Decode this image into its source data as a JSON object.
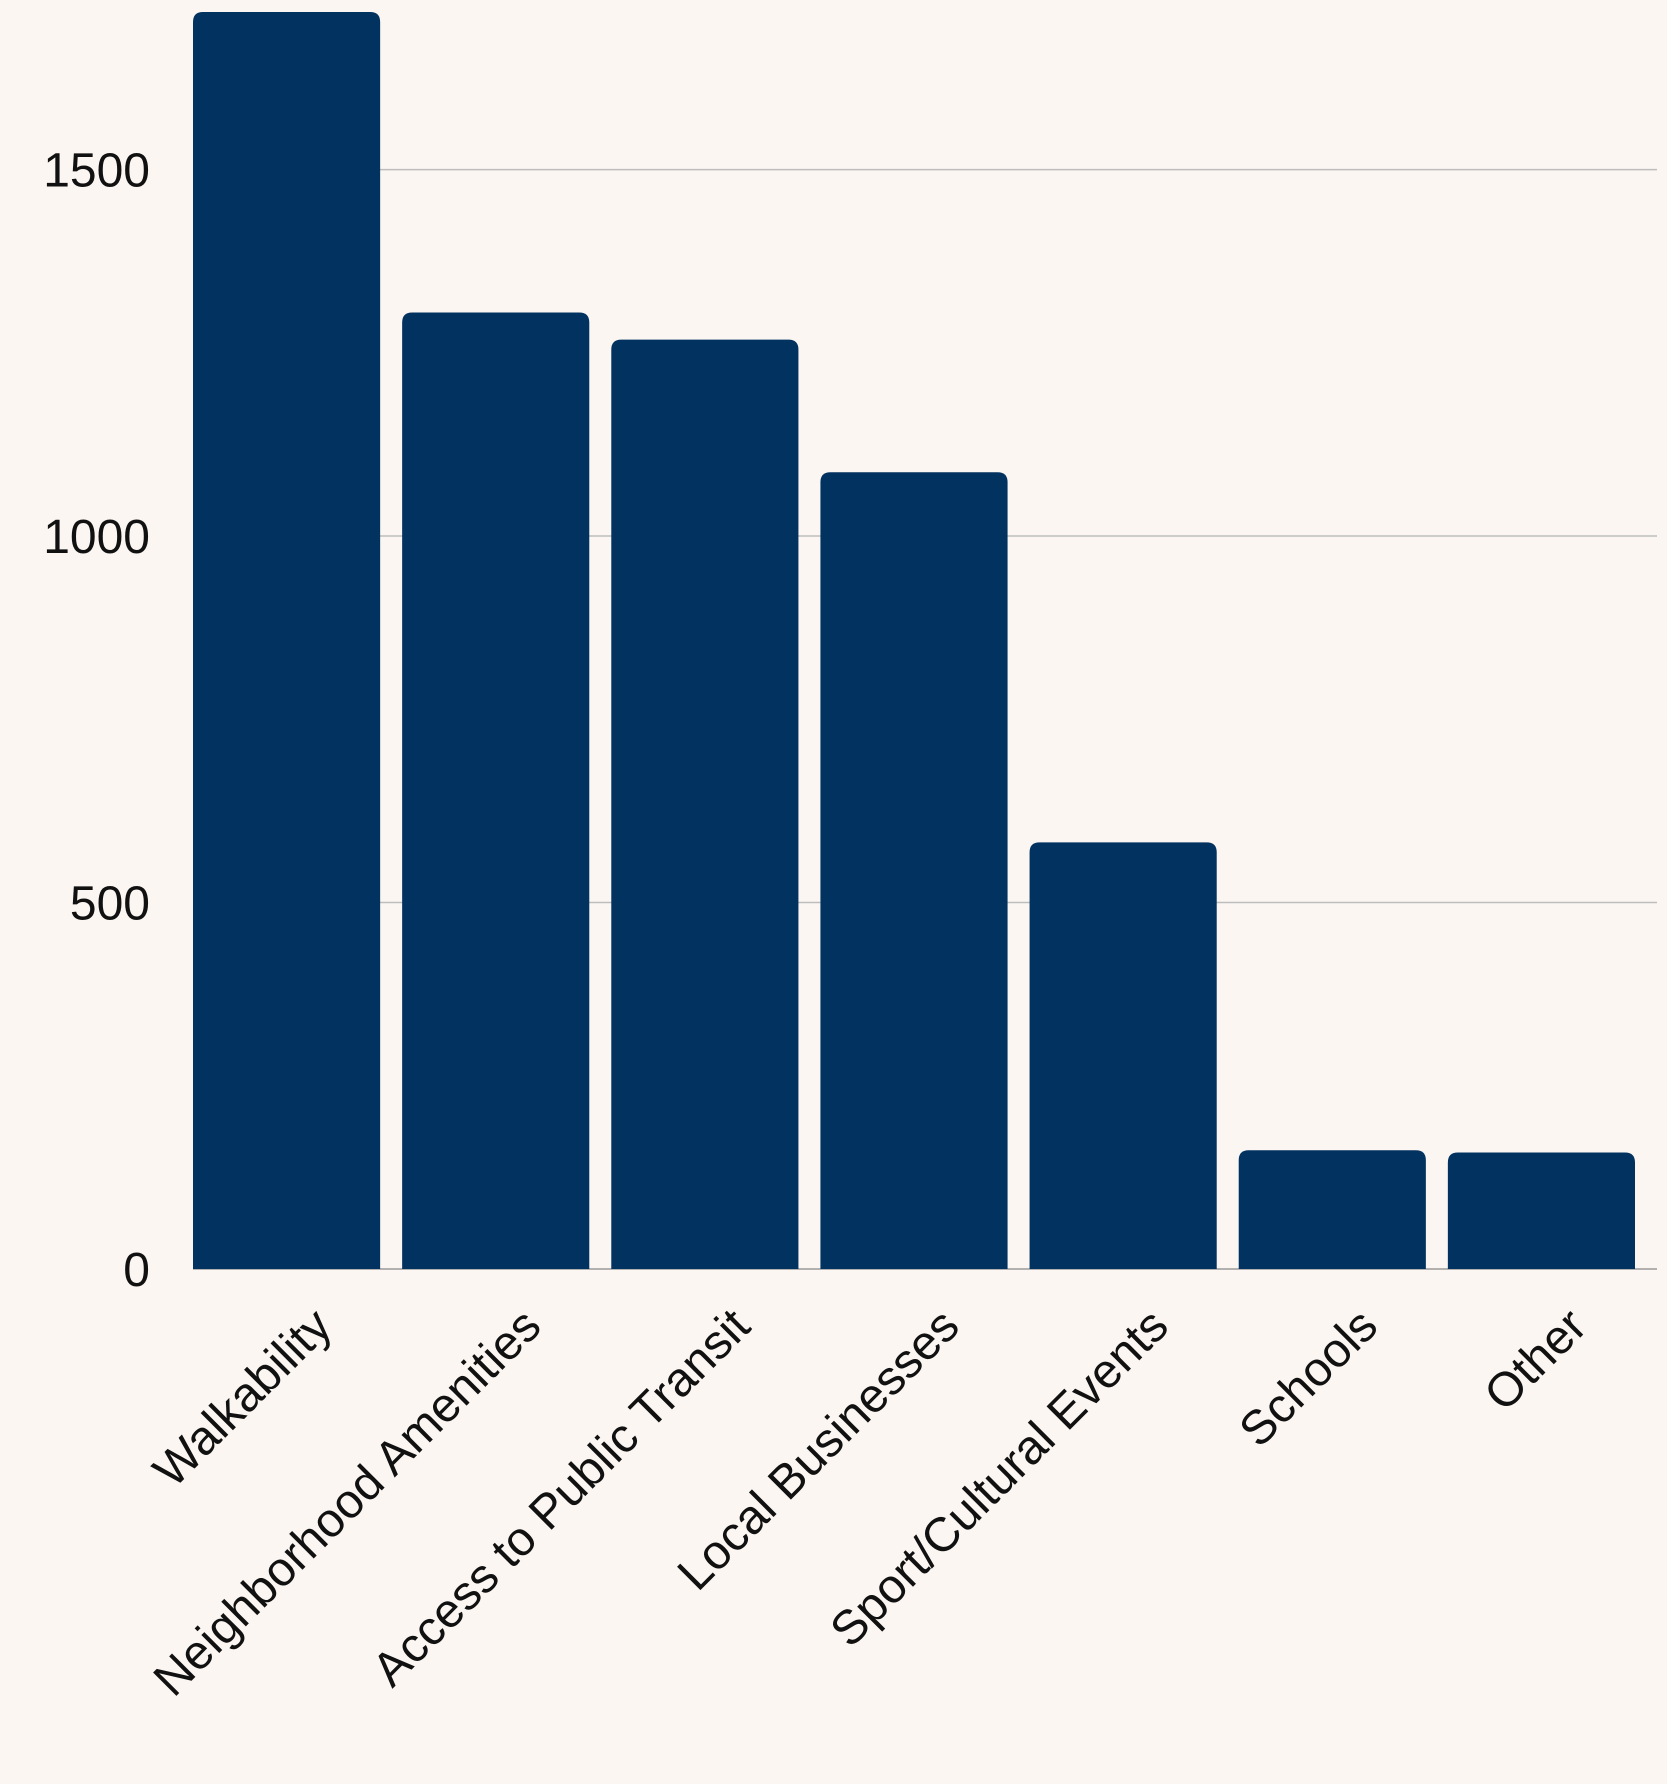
{
  "chart_data": {
    "type": "bar",
    "title": "",
    "xlabel": "",
    "ylabel": "",
    "categories": [
      "Walkability",
      "Neighborhood Amenities",
      "Access to Public Transit",
      "Local Businesses",
      "Sport/Cultural Events",
      "Schools",
      "Other"
    ],
    "values": [
      1715,
      1305,
      1268,
      1087,
      582,
      162,
      159
    ],
    "ylim": [
      0,
      1715
    ],
    "yticks": [
      0,
      500,
      1000,
      1500
    ],
    "grid": true,
    "legend": "none",
    "bar_color": "#02325f",
    "background_color": "#fbf6f2"
  }
}
